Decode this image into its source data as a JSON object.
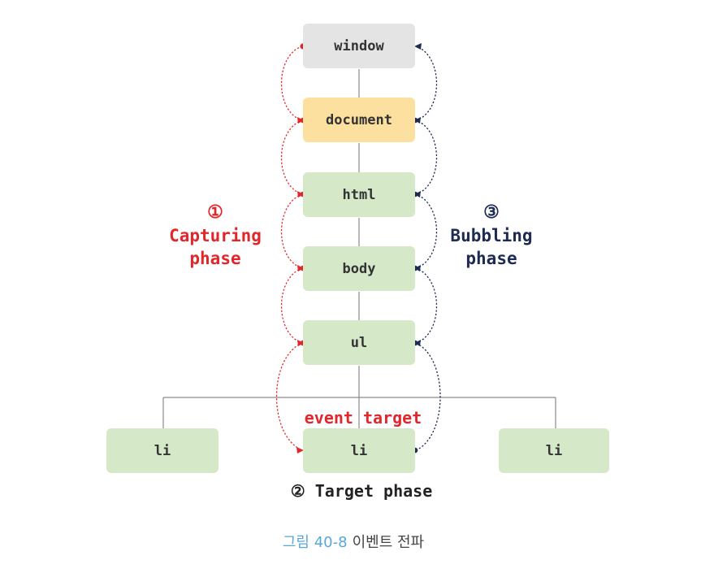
{
  "nodes": {
    "window": "window",
    "document": "document",
    "html": "html",
    "body": "body",
    "ul": "ul",
    "li_left": "li",
    "li_target": "li",
    "li_right": "li"
  },
  "capturing": {
    "number": "①",
    "title_line1": "Capturing",
    "title_line2": "phase"
  },
  "bubbling": {
    "number": "③",
    "title_line1": "Bubbling",
    "title_line2": "phase"
  },
  "event_target_label": "event target",
  "target_phase": "② Target phase",
  "caption": {
    "figure_number": "그림 40-8",
    "title": "이벤트 전파"
  },
  "colors": {
    "window_fill": "#e4e4e4",
    "document_fill": "#fbe0a0",
    "element_fill": "#d5e8c8",
    "capturing": "#e0282c",
    "bubbling": "#1e2b52",
    "tree_line": "#8a8a8a",
    "caption_number": "#5aa7d8"
  }
}
